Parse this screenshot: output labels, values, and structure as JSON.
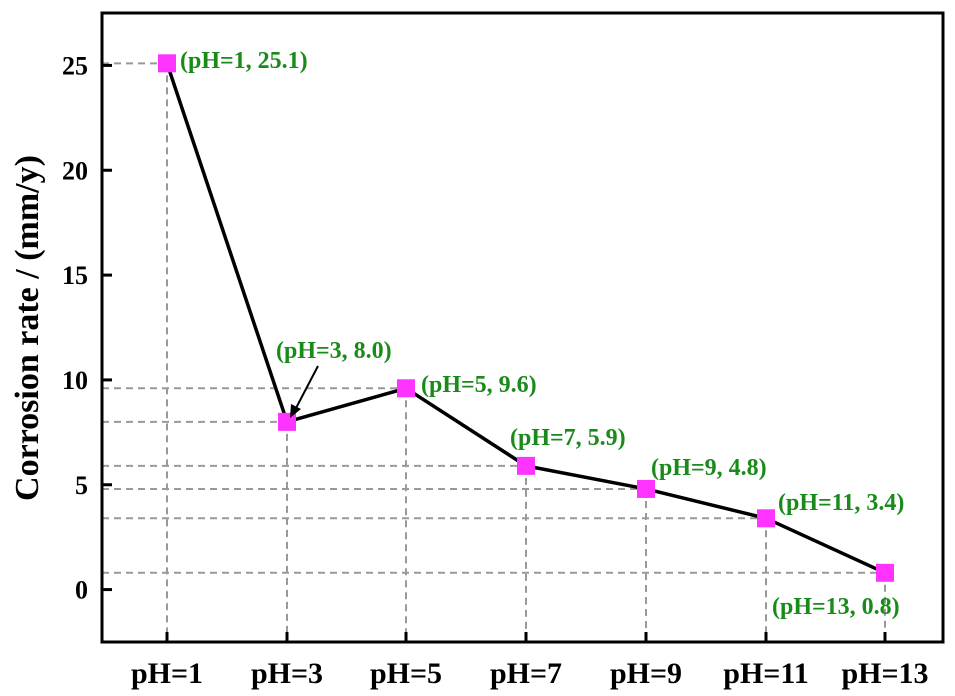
{
  "chart_data": {
    "type": "line",
    "ylabel": "Corrosion rate / (mm/y)",
    "xlabel": "",
    "categories": [
      "pH=1",
      "pH=3",
      "pH=5",
      "pH=7",
      "pH=9",
      "pH=11",
      "pH=13"
    ],
    "series": [
      {
        "values": [
          25.1,
          8.0,
          9.6,
          5.9,
          4.8,
          3.4,
          0.8
        ]
      }
    ],
    "ylim": [
      -2.5,
      27.5
    ],
    "yticks": [
      0,
      5,
      10,
      15,
      20,
      25
    ],
    "ytick_labels": [
      "0",
      "5",
      "10",
      "15",
      "20",
      "25"
    ],
    "annotations": [
      "(pH=1, 25.1)",
      "(pH=3, 8.0)",
      "(pH=5, 9.6)",
      "(pH=7, 5.9)",
      "(pH=9, 4.8)",
      "(pH=11, 3.4)",
      "(pH=13, 0.8)"
    ],
    "grid": "dashed drop lines from each point to both axes",
    "marker": "square",
    "colors": {
      "line": "#000000",
      "marker": "#ff33ff",
      "annotation": "#1a8a1a",
      "guide": "#999999"
    }
  }
}
